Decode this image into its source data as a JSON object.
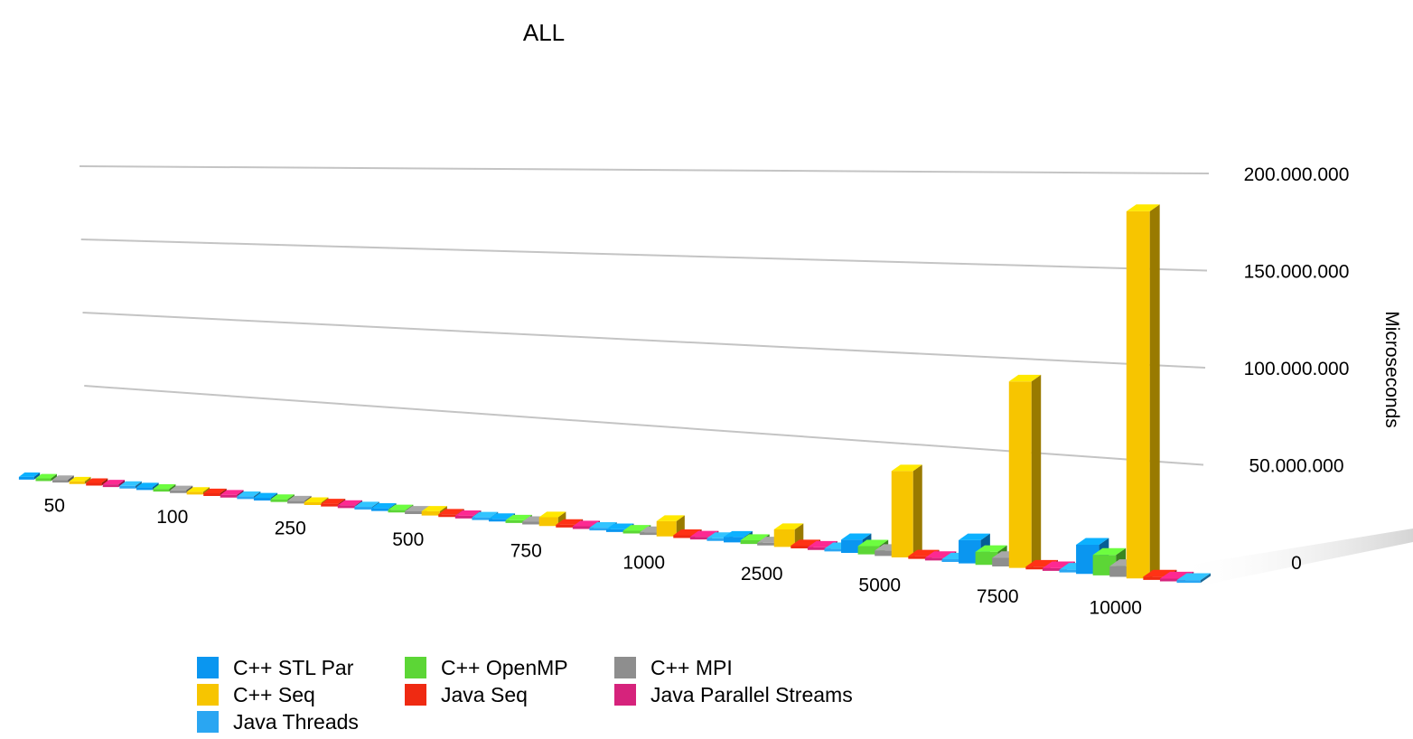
{
  "chart_data": {
    "type": "bar",
    "title": "ALL",
    "xlabel": "",
    "ylabel": "Microseconds",
    "ylim": [
      0,
      200000000
    ],
    "y_ticks": [
      "0",
      "50.000.000",
      "100.000.000",
      "150.000.000",
      "200.000.000"
    ],
    "categories": [
      "50",
      "100",
      "250",
      "500",
      "750",
      "1000",
      "2500",
      "5000",
      "7500",
      "10000"
    ],
    "grid": true,
    "legend_position": "bottom",
    "series": [
      {
        "name": "C++ STL Par",
        "color": "#0a96f0",
        "values": [
          2000,
          5000,
          30000,
          100000,
          250000,
          400000,
          2800000,
          6800000,
          12000000,
          15000000
        ]
      },
      {
        "name": "C++ OpenMP",
        "color": "#5cd636",
        "values": [
          1000,
          3000,
          20000,
          60000,
          150000,
          300000,
          1900000,
          4300000,
          6700000,
          10500000
        ]
      },
      {
        "name": "C++ MPI",
        "color": "#8e8e8e",
        "values": [
          5000,
          10000,
          30000,
          80000,
          150000,
          250000,
          1200000,
          2800000,
          4400000,
          5500000
        ]
      },
      {
        "name": "C++ Seq",
        "color": "#f7c500",
        "values": [
          20000,
          80000,
          600000,
          2200000,
          4500000,
          7900000,
          9000000,
          44500000,
          96000000,
          189000000
        ]
      },
      {
        "name": "Java Seq",
        "color": "#ef2a12",
        "values": [
          5000,
          15000,
          60000,
          200000,
          400000,
          700000,
          800000,
          1000000,
          1300000,
          1600000
        ]
      },
      {
        "name": "Java Parallel Streams",
        "color": "#d6237c",
        "values": [
          3000,
          10000,
          30000,
          100000,
          200000,
          300000,
          400000,
          600000,
          800000,
          1000000
        ]
      },
      {
        "name": "Java Threads",
        "color": "#2aa6f2",
        "values": [
          2000,
          5000,
          20000,
          60000,
          120000,
          200000,
          300000,
          400000,
          500000,
          700000
        ]
      }
    ]
  }
}
